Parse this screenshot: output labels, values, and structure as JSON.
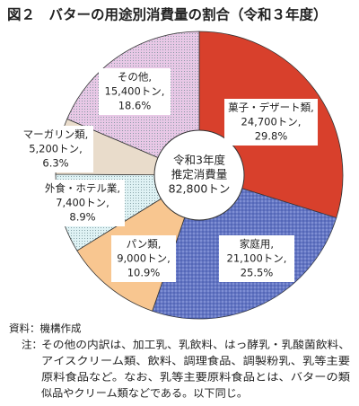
{
  "chart_data": {
    "type": "donut",
    "title": "図２　バターの用途別消費量の割合（令和３年度）",
    "center_label": [
      "令和3年度",
      "推定消費量",
      "82,800トン"
    ],
    "categories": [
      "菓子・デザート類,",
      "家庭用,",
      "パン類,",
      "外食・ホテル業,",
      "マーガリン類,",
      "その他,"
    ],
    "amount_labels": [
      "24,700トン,",
      "21,100トン,",
      "9,000トン,",
      "7,400トン,",
      "5,200トン,",
      "15,400トン,"
    ],
    "values": [
      29.8,
      25.5,
      10.9,
      8.9,
      6.3,
      18.6
    ],
    "value_labels": [
      "29.8%",
      "25.5%",
      "10.9%",
      "8.9%",
      "6.3%",
      "18.6%"
    ],
    "colors": [
      "#d8402c",
      "#7f8fd4",
      "#f8c690",
      "#dff2f4",
      "#e9dccb",
      "#e8c8e6"
    ]
  },
  "notes": {
    "source": "資料：機構作成",
    "note_head": "注：",
    "note_lines": [
      "その他の内訳は、加工乳、乳飲料、はっ酵乳・乳酸菌飲料、",
      "アイスクリーム類、飲料、調理食品、調製粉乳、乳等主要",
      "原料食品など。なお、乳等主要原料食品とは、バターの類",
      "似品やクリーム類などである。以下同じ。"
    ]
  }
}
